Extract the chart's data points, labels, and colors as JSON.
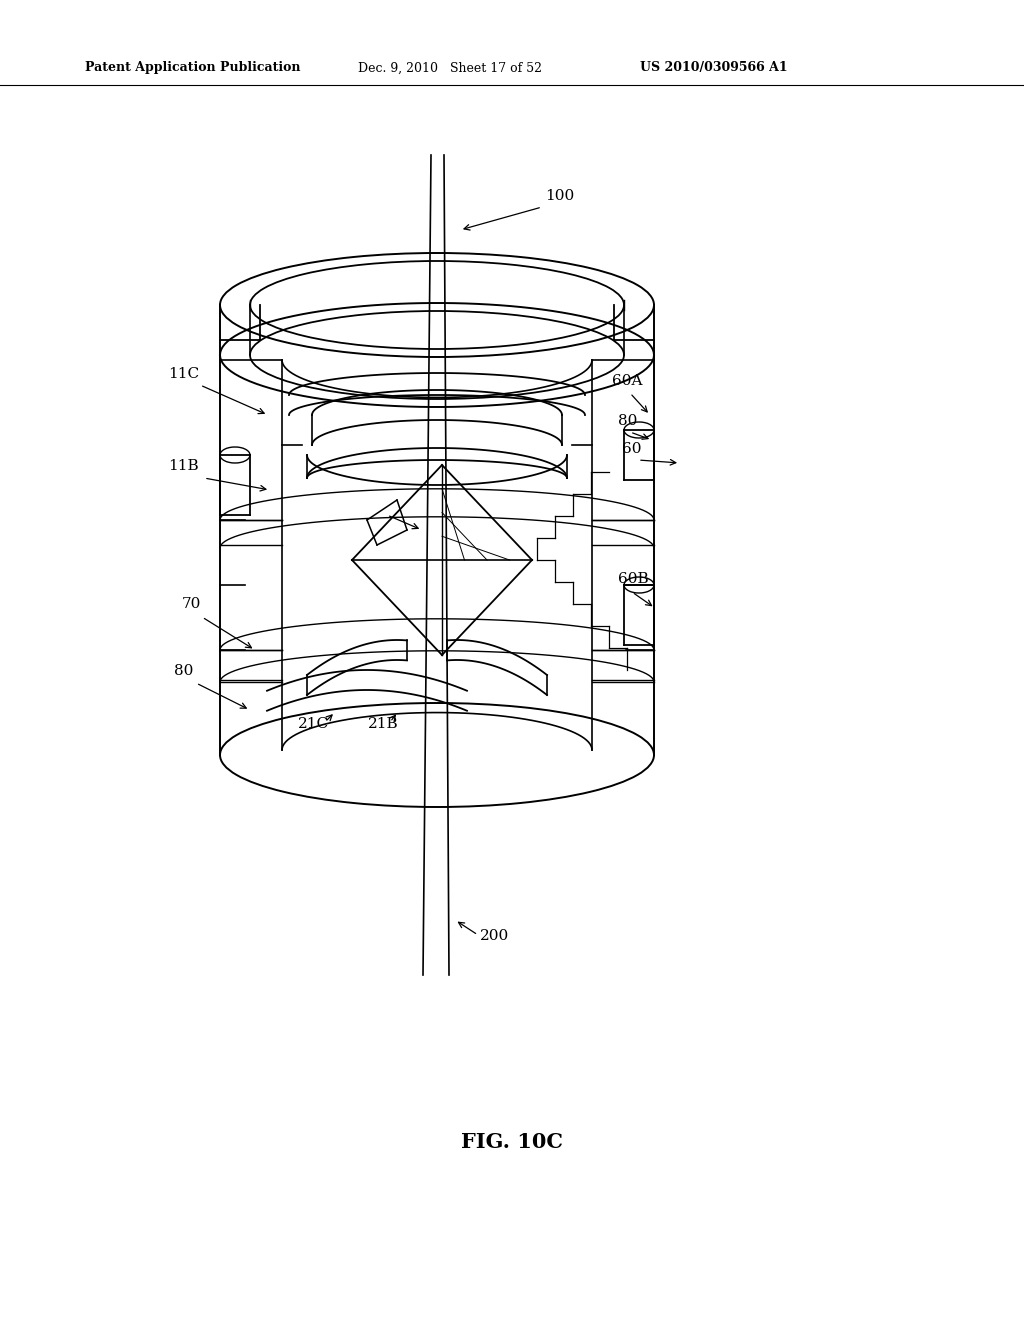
{
  "bg_color": "#ffffff",
  "header_left": "Patent Application Publication",
  "header_mid": "Dec. 9, 2010   Sheet 17 of 52",
  "header_right": "US 2010/0309566 A1",
  "figure_label": "FIG. 10C",
  "col": "black",
  "lw": 1.3
}
